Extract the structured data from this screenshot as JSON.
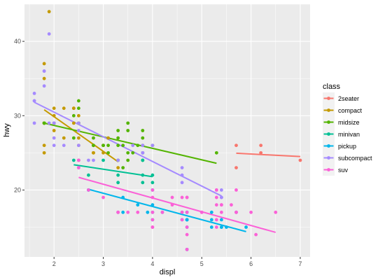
{
  "chart_data": {
    "type": "scatter",
    "xlabel": "displ",
    "ylabel": "hwy",
    "xlim": [
      1.4,
      7.2
    ],
    "ylim": [
      11,
      45
    ],
    "x_ticks": [
      2,
      3,
      4,
      5,
      6,
      7
    ],
    "y_ticks": [
      20,
      30,
      40
    ],
    "grid": true,
    "background": "#EBEBEB",
    "legend": {
      "title": "class",
      "position": "right"
    },
    "series": [
      {
        "name": "2seater",
        "color": "#F8766D",
        "points": [
          [
            5.7,
            26
          ],
          [
            5.7,
            23
          ],
          [
            6.2,
            26
          ],
          [
            6.2,
            25
          ],
          [
            7.0,
            24
          ]
        ],
        "fit": [
          [
            5.7,
            24.95
          ],
          [
            7.0,
            24.5
          ]
        ]
      },
      {
        "name": "compact",
        "color": "#C49A00",
        "points": [
          [
            1.8,
            29
          ],
          [
            1.8,
            29
          ],
          [
            2.0,
            31
          ],
          [
            2.0,
            30
          ],
          [
            2.8,
            26
          ],
          [
            2.8,
            26
          ],
          [
            3.1,
            27
          ],
          [
            1.8,
            26
          ],
          [
            1.8,
            25
          ],
          [
            2.0,
            28
          ],
          [
            2.0,
            29
          ],
          [
            2.8,
            25
          ],
          [
            2.8,
            25
          ],
          [
            2.4,
            31
          ],
          [
            2.4,
            31
          ],
          [
            2.4,
            29
          ],
          [
            2.5,
            30
          ],
          [
            2.2,
            27
          ],
          [
            2.2,
            31
          ],
          [
            2.5,
            29
          ],
          [
            3.0,
            26
          ],
          [
            3.3,
            24
          ],
          [
            1.8,
            37
          ],
          [
            1.8,
            35
          ],
          [
            1.9,
            44
          ],
          [
            2.0,
            29
          ],
          [
            2.5,
            24
          ],
          [
            1.8,
            29
          ],
          [
            2.5,
            27
          ],
          [
            2.5,
            26
          ],
          [
            2.8,
            26
          ],
          [
            3.0,
            25
          ],
          [
            3.3,
            23
          ]
        ],
        "fit": [
          [
            1.8,
            30.8
          ],
          [
            3.3,
            23.8
          ]
        ]
      },
      {
        "name": "midsize",
        "color": "#53B400",
        "points": [
          [
            1.8,
            29
          ],
          [
            2.5,
            32
          ],
          [
            2.5,
            29
          ],
          [
            2.4,
            30
          ],
          [
            2.5,
            31
          ],
          [
            3.0,
            26
          ],
          [
            3.3,
            26
          ],
          [
            3.5,
            29
          ],
          [
            3.5,
            28
          ],
          [
            3.8,
            24
          ],
          [
            3.8,
            25
          ],
          [
            3.8,
            27
          ],
          [
            3.8,
            28
          ],
          [
            3.8,
            26
          ],
          [
            2.4,
            27
          ],
          [
            3.0,
            26
          ],
          [
            3.5,
            25
          ],
          [
            3.5,
            24
          ],
          [
            3.3,
            28
          ],
          [
            2.8,
            26
          ],
          [
            3.4,
            26
          ],
          [
            3.1,
            26
          ],
          [
            3.3,
            27
          ],
          [
            3.6,
            25
          ],
          [
            3.7,
            26
          ],
          [
            4.0,
            26
          ],
          [
            5.3,
            25
          ],
          [
            1.8,
            29
          ],
          [
            2.8,
            27
          ],
          [
            3.1,
            25
          ],
          [
            3.4,
            23
          ]
        ],
        "fit": [
          [
            1.8,
            29.0
          ],
          [
            5.3,
            23.6
          ]
        ]
      },
      {
        "name": "minivan",
        "color": "#00C094",
        "points": [
          [
            2.4,
            24
          ],
          [
            3.0,
            24
          ],
          [
            3.3,
            22
          ],
          [
            3.3,
            21
          ],
          [
            3.3,
            24
          ],
          [
            3.8,
            22
          ],
          [
            3.8,
            21
          ],
          [
            3.8,
            24
          ],
          [
            4.0,
            21
          ],
          [
            4.0,
            22
          ],
          [
            2.7,
            22
          ]
        ],
        "fit": [
          [
            2.4,
            23.4
          ],
          [
            4.0,
            21.8
          ]
        ]
      },
      {
        "name": "pickup",
        "color": "#00B6EB",
        "points": [
          [
            2.7,
            20
          ],
          [
            3.4,
            17
          ],
          [
            4.0,
            17
          ],
          [
            4.7,
            17
          ],
          [
            4.7,
            15
          ],
          [
            4.7,
            16
          ],
          [
            4.7,
            12
          ],
          [
            5.2,
            17
          ],
          [
            5.7,
            17
          ],
          [
            2.7,
            20
          ],
          [
            4.0,
            16
          ],
          [
            3.7,
            18
          ],
          [
            3.9,
            17
          ],
          [
            4.7,
            17
          ],
          [
            4.7,
            16
          ],
          [
            5.2,
            15
          ],
          [
            5.2,
            16
          ],
          [
            3.4,
            19
          ],
          [
            4.7,
            16
          ],
          [
            4.6,
            17
          ],
          [
            5.4,
            15
          ],
          [
            5.4,
            15
          ],
          [
            5.9,
            15
          ],
          [
            3.3,
            17
          ],
          [
            4.0,
            20
          ],
          [
            4.7,
            16
          ],
          [
            4.6,
            16
          ],
          [
            5.4,
            16
          ],
          [
            4.2,
            17
          ],
          [
            5.5,
            15
          ],
          [
            4.0,
            18
          ]
        ],
        "fit": [
          [
            2.7,
            20.1
          ],
          [
            5.9,
            14.4
          ]
        ]
      },
      {
        "name": "subcompact",
        "color": "#A58AFF",
        "points": [
          [
            1.6,
            33
          ],
          [
            1.6,
            32
          ],
          [
            1.6,
            32
          ],
          [
            1.6,
            29
          ],
          [
            1.8,
            36
          ],
          [
            1.8,
            34
          ],
          [
            1.8,
            36
          ],
          [
            1.9,
            41
          ],
          [
            1.9,
            29
          ],
          [
            2.0,
            29
          ],
          [
            2.0,
            29
          ],
          [
            2.0,
            27
          ],
          [
            2.0,
            26
          ],
          [
            2.5,
            26
          ],
          [
            2.5,
            28
          ],
          [
            3.3,
            24
          ],
          [
            3.8,
            26
          ],
          [
            3.8,
            25
          ],
          [
            4.6,
            23
          ],
          [
            4.6,
            21
          ],
          [
            5.4,
            20
          ],
          [
            5.4,
            19
          ],
          [
            2.2,
            26
          ],
          [
            2.5,
            24
          ],
          [
            2.5,
            29
          ],
          [
            2.7,
            24
          ],
          [
            2.5,
            23
          ],
          [
            2.8,
            24
          ],
          [
            3.6,
            26
          ],
          [
            4.0,
            26
          ],
          [
            3.8,
            25
          ],
          [
            4.6,
            22
          ],
          [
            5.4,
            19
          ]
        ],
        "fit": [
          [
            1.6,
            31.8
          ],
          [
            5.4,
            19.2
          ]
        ]
      },
      {
        "name": "suv",
        "color": "#FB61D7",
        "points": [
          [
            5.3,
            20
          ],
          [
            5.3,
            15
          ],
          [
            5.3,
            20
          ],
          [
            5.7,
            17
          ],
          [
            6.0,
            17
          ],
          [
            5.7,
            20
          ],
          [
            5.7,
            17
          ],
          [
            6.5,
            17
          ],
          [
            5.3,
            19
          ],
          [
            4.7,
            17
          ],
          [
            4.0,
            19
          ],
          [
            4.0,
            20
          ],
          [
            4.6,
            19
          ],
          [
            5.0,
            17
          ],
          [
            4.2,
            17
          ],
          [
            4.4,
            18
          ],
          [
            4.6,
            17
          ],
          [
            5.4,
            17
          ],
          [
            5.4,
            18
          ],
          [
            3.7,
            17
          ],
          [
            4.0,
            17
          ],
          [
            4.7,
            15
          ],
          [
            5.6,
            18
          ],
          [
            5.4,
            18
          ],
          [
            4.0,
            15
          ],
          [
            4.4,
            19
          ],
          [
            4.0,
            15
          ],
          [
            6.1,
            14
          ],
          [
            5.3,
            16
          ],
          [
            4.7,
            12
          ],
          [
            5.3,
            18
          ],
          [
            2.5,
            24
          ],
          [
            2.5,
            23
          ],
          [
            3.3,
            17
          ],
          [
            3.3,
            17
          ],
          [
            4.0,
            16
          ],
          [
            4.7,
            14
          ],
          [
            4.7,
            19
          ],
          [
            2.7,
            20
          ],
          [
            3.0,
            19
          ],
          [
            4.7,
            19
          ],
          [
            3.5,
            17
          ],
          [
            5.0,
            17
          ],
          [
            4.6,
            16
          ]
        ],
        "fit": [
          [
            2.5,
            21.7
          ],
          [
            6.5,
            14.3
          ]
        ]
      }
    ]
  }
}
